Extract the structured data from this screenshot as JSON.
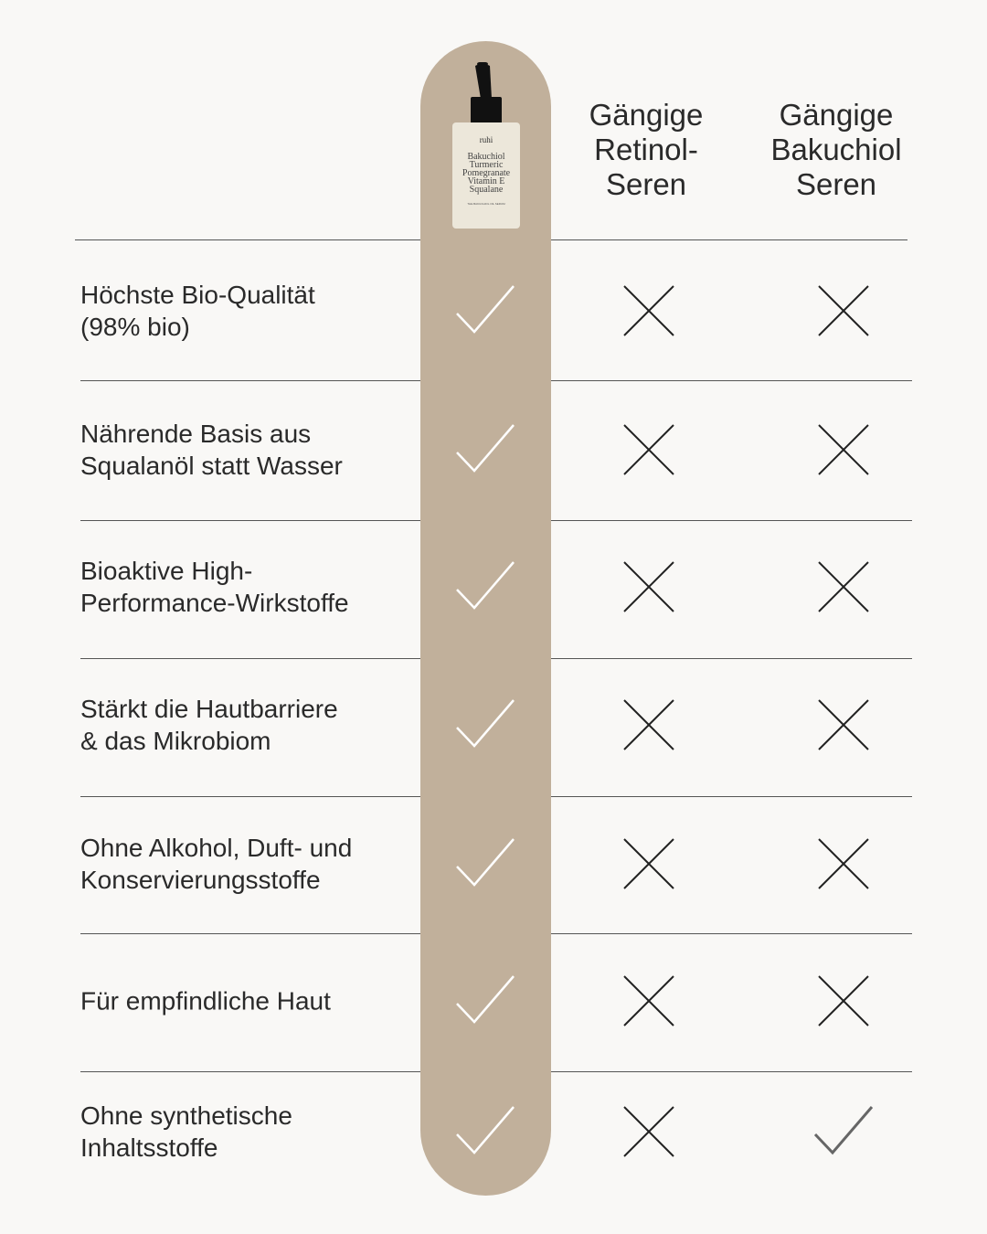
{
  "product": {
    "brand": "ruhi",
    "label_lines": [
      "Bakuchiol",
      "Turmeric",
      "Pomegranate",
      "Vitamin E",
      "Squalane"
    ],
    "subtitle": "THE BAKUCHIOL OIL SERUM"
  },
  "columns": [
    {
      "header": ""
    },
    {
      "header_lines": [
        "Gängige",
        "Retinol-",
        "Seren"
      ]
    },
    {
      "header_lines": [
        "Gängige",
        "Bakuchiol",
        "Seren"
      ]
    }
  ],
  "colors": {
    "background": "#f9f8f6",
    "highlight_column": "#c1b09b",
    "check_on_highlight": "#ffffff",
    "mark": "#222222",
    "check_gray": "#666666"
  },
  "rows": [
    {
      "label_lines": [
        "Höchste Bio-Qualität",
        "(98% bio)"
      ],
      "marks": [
        "check",
        "cross",
        "cross"
      ]
    },
    {
      "label_lines": [
        "Nährende Basis aus",
        "Squalanöl statt Wasser"
      ],
      "marks": [
        "check",
        "cross",
        "cross"
      ]
    },
    {
      "label_lines": [
        "Bioaktive High-",
        "Performance-Wirkstoffe"
      ],
      "marks": [
        "check",
        "cross",
        "cross"
      ]
    },
    {
      "label_lines": [
        "Stärkt die Hautbarriere",
        "& das Mikrobiom"
      ],
      "marks": [
        "check",
        "cross",
        "cross"
      ]
    },
    {
      "label_lines": [
        "Ohne Alkohol, Duft- und",
        "Konservierungsstoffe"
      ],
      "marks": [
        "check",
        "cross",
        "cross"
      ]
    },
    {
      "label_lines": [
        "Für empfindliche Haut"
      ],
      "marks": [
        "check",
        "cross",
        "cross"
      ]
    },
    {
      "label_lines": [
        "Ohne synthetische",
        "Inhaltsstoffe"
      ],
      "marks": [
        "check",
        "cross",
        "check"
      ]
    }
  ]
}
